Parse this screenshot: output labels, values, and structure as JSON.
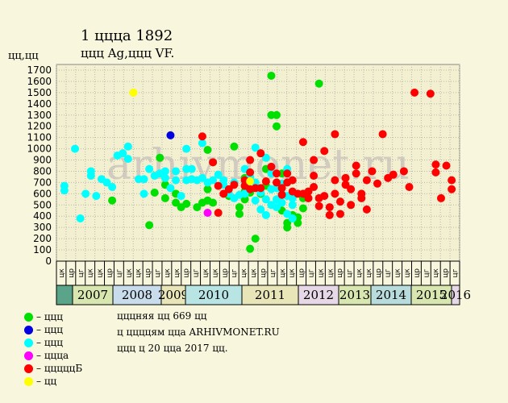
{
  "title": "1 ццца 1892",
  "subtitle": "ццц Ag,ццц VF.",
  "ylabel": "цц,цц",
  "watermark": "arhivmonet.ru",
  "legend": [
    {
      "label": "– ццц",
      "color": "#00e000"
    },
    {
      "label": "– ццц",
      "color": "#0000e0"
    },
    {
      "label": "– ццц",
      "color": "#00ffff"
    },
    {
      "label": "– цццa",
      "color": "#ff00ff"
    },
    {
      "label": "– цццццБ",
      "color": "#ff0000"
    },
    {
      "label": "– цц",
      "color": "#ffff00"
    }
  ],
  "notes": [
    "цццняя цц 669 цц",
    "ц ццццям ццa ARHIVMONET.RU",
    "ццц ц 20 цца 2017 цц."
  ],
  "chart_data": {
    "type": "scatter",
    "ylim": [
      0,
      1700
    ],
    "yticks": [
      0,
      100,
      200,
      300,
      400,
      500,
      600,
      700,
      800,
      900,
      1000,
      1100,
      1200,
      1300,
      1400,
      1500,
      1600,
      1700
    ],
    "years": [
      {
        "label": "2007",
        "color": "#d8e6b0"
      },
      {
        "label": "2008",
        "color": "#c8dcec"
      },
      {
        "label": "2009",
        "color": "#e8e6b8"
      },
      {
        "label": "2010",
        "color": "#b8e4e4"
      },
      {
        "label": "2011",
        "color": "#e8e6b8"
      },
      {
        "label": "2012",
        "color": "#e6d8e6"
      },
      {
        "label": "2013",
        "color": "#d8e6b0"
      },
      {
        "label": "2014",
        "color": "#b8dcdc"
      },
      {
        "label": "2015",
        "color": "#d8e6b0"
      },
      {
        "label": "2016",
        "color": "#e6d8e6"
      }
    ],
    "quarter_labels": [
      "цк",
      "цр",
      "цг",
      "цк",
      "цк",
      "цр",
      "цг",
      "цк",
      "цк",
      "цр",
      "цг",
      "цк",
      "цк",
      "цр",
      "цг",
      "цк",
      "цк",
      "цр",
      "цг",
      "цк",
      "цк",
      "цр",
      "цг",
      "цк",
      "цк",
      "цр",
      "цг",
      "цк",
      "цк",
      "цр",
      "цг",
      "цк",
      "цк",
      "цр",
      "цг",
      "цк",
      "цк",
      "цр",
      "цг",
      "цк",
      "цр",
      "цг"
    ],
    "series": [
      {
        "color": "#00e000",
        "points": [
          [
            10,
            540
          ],
          [
            17,
            320
          ],
          [
            18,
            610
          ],
          [
            19,
            920
          ],
          [
            20,
            560
          ],
          [
            20,
            680
          ],
          [
            22,
            520
          ],
          [
            22,
            600
          ],
          [
            23,
            480
          ],
          [
            24,
            510
          ],
          [
            26,
            480
          ],
          [
            27,
            520
          ],
          [
            28,
            540
          ],
          [
            28,
            640
          ],
          [
            28,
            990
          ],
          [
            29,
            520
          ],
          [
            32,
            580
          ],
          [
            33,
            1020
          ],
          [
            34,
            420
          ],
          [
            34,
            480
          ],
          [
            35,
            550
          ],
          [
            35,
            620
          ],
          [
            35,
            740
          ],
          [
            36,
            110
          ],
          [
            36,
            610
          ],
          [
            37,
            200
          ],
          [
            38,
            600
          ],
          [
            39,
            670
          ],
          [
            39,
            820
          ],
          [
            40,
            1650
          ],
          [
            40,
            1300
          ],
          [
            41,
            1300
          ],
          [
            41,
            1200
          ],
          [
            42,
            450
          ],
          [
            42,
            780
          ],
          [
            43,
            300
          ],
          [
            43,
            340
          ],
          [
            44,
            410
          ],
          [
            45,
            340
          ],
          [
            45,
            390
          ],
          [
            46,
            560
          ],
          [
            46,
            470
          ],
          [
            49,
            1580
          ]
        ]
      },
      {
        "color": "#0000e0",
        "points": [
          [
            21,
            1120
          ]
        ]
      },
      {
        "color": "#00ffff",
        "points": [
          [
            1,
            670
          ],
          [
            1,
            630
          ],
          [
            3,
            1000
          ],
          [
            4,
            380
          ],
          [
            5,
            600
          ],
          [
            6,
            800
          ],
          [
            6,
            760
          ],
          [
            7,
            580
          ],
          [
            8,
            730
          ],
          [
            9,
            700
          ],
          [
            10,
            660
          ],
          [
            11,
            940
          ],
          [
            12,
            960
          ],
          [
            13,
            1020
          ],
          [
            13,
            910
          ],
          [
            15,
            730
          ],
          [
            16,
            730
          ],
          [
            16,
            600
          ],
          [
            17,
            820
          ],
          [
            18,
            760
          ],
          [
            19,
            780
          ],
          [
            20,
            740
          ],
          [
            20,
            800
          ],
          [
            21,
            650
          ],
          [
            22,
            800
          ],
          [
            22,
            720
          ],
          [
            23,
            580
          ],
          [
            24,
            820
          ],
          [
            24,
            720
          ],
          [
            24,
            1000
          ],
          [
            25,
            730
          ],
          [
            25,
            820
          ],
          [
            26,
            720
          ],
          [
            27,
            1050
          ],
          [
            27,
            740
          ],
          [
            28,
            700
          ],
          [
            29,
            880
          ],
          [
            29,
            720
          ],
          [
            30,
            770
          ],
          [
            31,
            720
          ],
          [
            31,
            680
          ],
          [
            32,
            600
          ],
          [
            33,
            700
          ],
          [
            33,
            560
          ],
          [
            34,
            590
          ],
          [
            35,
            680
          ],
          [
            35,
            600
          ],
          [
            35,
            820
          ],
          [
            36,
            750
          ],
          [
            37,
            700
          ],
          [
            37,
            540
          ],
          [
            37,
            1010
          ],
          [
            38,
            460
          ],
          [
            38,
            610
          ],
          [
            39,
            550
          ],
          [
            39,
            410
          ],
          [
            39,
            920
          ],
          [
            40,
            500
          ],
          [
            40,
            640
          ],
          [
            40,
            780
          ],
          [
            41,
            550
          ],
          [
            41,
            480
          ],
          [
            41,
            650
          ],
          [
            42,
            520
          ],
          [
            42,
            600
          ],
          [
            42,
            690
          ],
          [
            43,
            580
          ],
          [
            43,
            820
          ],
          [
            43,
            420
          ],
          [
            44,
            500
          ],
          [
            44,
            380
          ],
          [
            44,
            560
          ]
        ]
      },
      {
        "color": "#ff00ff",
        "points": [
          [
            28,
            430
          ]
        ]
      },
      {
        "color": "#ff0000",
        "points": [
          [
            27,
            1110
          ],
          [
            29,
            880
          ],
          [
            30,
            670
          ],
          [
            30,
            430
          ],
          [
            31,
            600
          ],
          [
            32,
            640
          ],
          [
            33,
            680
          ],
          [
            35,
            720
          ],
          [
            35,
            670
          ],
          [
            36,
            790
          ],
          [
            36,
            640
          ],
          [
            36,
            900
          ],
          [
            37,
            650
          ],
          [
            38,
            960
          ],
          [
            38,
            650
          ],
          [
            39,
            710
          ],
          [
            40,
            840
          ],
          [
            41,
            780
          ],
          [
            41,
            700
          ],
          [
            42,
            650
          ],
          [
            42,
            590
          ],
          [
            43,
            700
          ],
          [
            43,
            780
          ],
          [
            44,
            720
          ],
          [
            44,
            620
          ],
          [
            45,
            600
          ],
          [
            46,
            1060
          ],
          [
            46,
            600
          ],
          [
            47,
            560
          ],
          [
            47,
            620
          ],
          [
            48,
            900
          ],
          [
            48,
            760
          ],
          [
            48,
            660
          ],
          [
            49,
            490
          ],
          [
            49,
            560
          ],
          [
            50,
            980
          ],
          [
            50,
            580
          ],
          [
            51,
            410
          ],
          [
            51,
            480
          ],
          [
            52,
            600
          ],
          [
            52,
            720
          ],
          [
            52,
            1130
          ],
          [
            53,
            530
          ],
          [
            53,
            420
          ],
          [
            54,
            740
          ],
          [
            54,
            680
          ],
          [
            55,
            500
          ],
          [
            55,
            640
          ],
          [
            56,
            780
          ],
          [
            56,
            850
          ],
          [
            57,
            600
          ],
          [
            57,
            560
          ],
          [
            58,
            720
          ],
          [
            58,
            460
          ],
          [
            59,
            800
          ],
          [
            60,
            690
          ],
          [
            61,
            1130
          ],
          [
            62,
            740
          ],
          [
            63,
            770
          ],
          [
            65,
            800
          ],
          [
            66,
            660
          ],
          [
            67,
            1500
          ],
          [
            70,
            1490
          ],
          [
            71,
            860
          ],
          [
            71,
            790
          ],
          [
            72,
            560
          ],
          [
            73,
            850
          ],
          [
            74,
            720
          ],
          [
            74,
            640
          ]
        ]
      },
      {
        "color": "#ffff00",
        "points": [
          [
            14,
            1500
          ],
          [
            36,
            710
          ]
        ]
      }
    ]
  }
}
